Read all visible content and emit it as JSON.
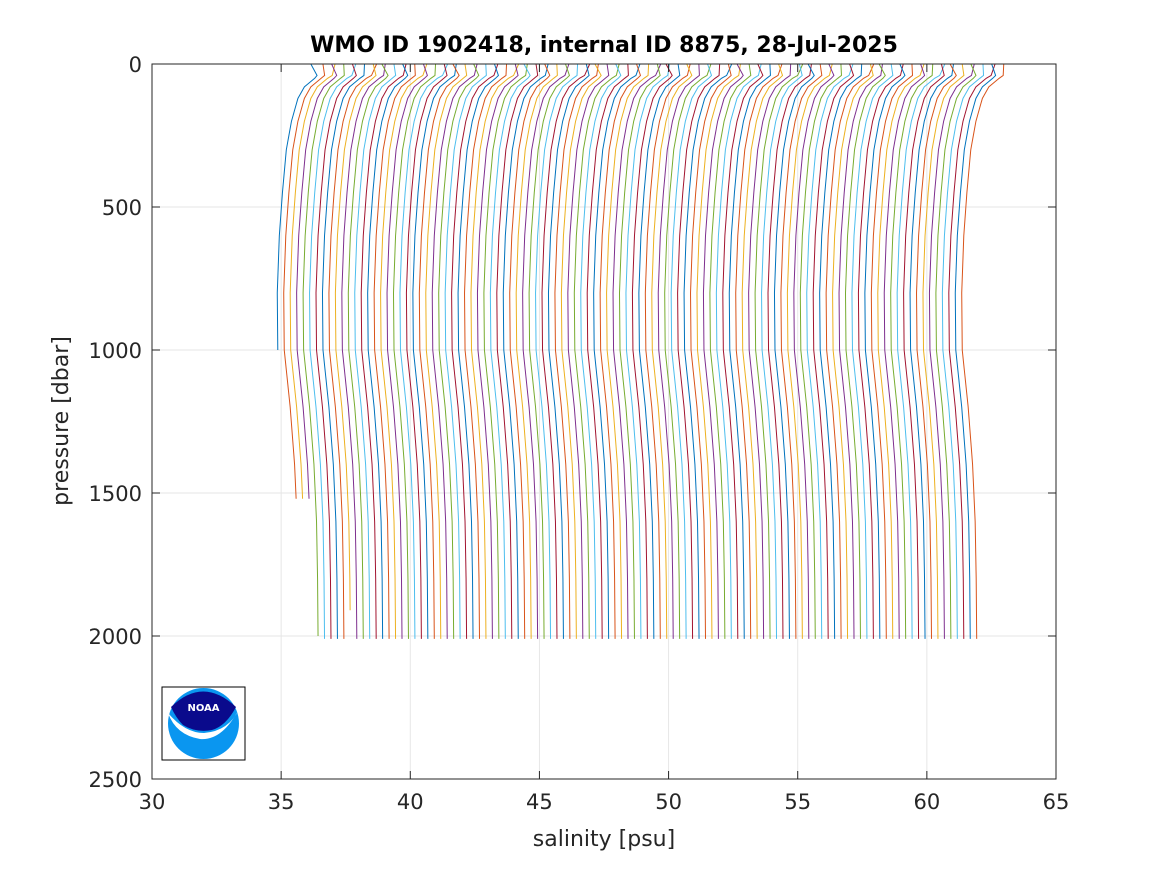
{
  "figure": {
    "background": "#ffffff",
    "plot_background": "#ffffff"
  },
  "chart_data": {
    "type": "line",
    "title": "WMO ID 1902418, internal ID 8875, 28-Jul-2025",
    "xlabel": "salinity [psu]",
    "ylabel": "pressure [dbar]",
    "xlim": [
      30,
      65
    ],
    "ylim": [
      0,
      2500
    ],
    "y_reversed": true,
    "grid": true,
    "box": true,
    "legend": "none",
    "xticks": [
      30,
      35,
      40,
      45,
      50,
      55,
      60,
      65
    ],
    "yticks": [
      0,
      500,
      1000,
      1500,
      2000,
      2500
    ],
    "xtick_labels": [
      "30",
      "35",
      "40",
      "45",
      "50",
      "55",
      "60",
      "65"
    ],
    "ytick_labels": [
      "0",
      "500",
      "1000",
      "1500",
      "2000",
      "2500"
    ],
    "colors": [
      "#0072BD",
      "#D95319",
      "#EDB120",
      "#7E2F8E",
      "#77AC30",
      "#4DBEEE",
      "#A2142F"
    ],
    "profile_count": 107,
    "profile_spacing_psu": 0.25,
    "first_profile": {
      "surface_salinity": 36.45,
      "mixed_layer_max_pressure": 40,
      "deep_salinity": 34.85,
      "max_pressure": 1000
    },
    "profile_template": {
      "offset_from_deep_psu": [
        {
          "p": 0,
          "ds": 1.6
        },
        {
          "p": 40,
          "ds": 1.6
        },
        {
          "p": 50,
          "ds": 1.45
        },
        {
          "p": 80,
          "ds": 1.05
        },
        {
          "p": 120,
          "ds": 0.8
        },
        {
          "p": 200,
          "ds": 0.55
        },
        {
          "p": 300,
          "ds": 0.35
        },
        {
          "p": 450,
          "ds": 0.2
        },
        {
          "p": 600,
          "ds": 0.08
        },
        {
          "p": 800,
          "ds": 0.0
        },
        {
          "p": 1000,
          "ds": 0.02
        },
        {
          "p": 1200,
          "ds": 0.25
        },
        {
          "p": 1400,
          "ds": 0.42
        },
        {
          "p": 1600,
          "ds": 0.52
        },
        {
          "p": 1800,
          "ds": 0.56
        },
        {
          "p": 2015,
          "ds": 0.58
        }
      ],
      "typical_max_pressure": 2015,
      "short_profiles": [
        {
          "index": 0,
          "max_pressure": 1000
        },
        {
          "index": 1,
          "max_pressure": 1520
        },
        {
          "index": 2,
          "max_pressure": 1520
        },
        {
          "index": 3,
          "max_pressure": 1520
        },
        {
          "index": 4,
          "max_pressure": 2005
        },
        {
          "index": 9,
          "max_pressure": 1910
        }
      ]
    },
    "logo": {
      "text": "NOAA",
      "colors": {
        "dark_blue": "#0a0a8c",
        "light_blue": "#0a96f0",
        "white": "#ffffff"
      }
    }
  }
}
